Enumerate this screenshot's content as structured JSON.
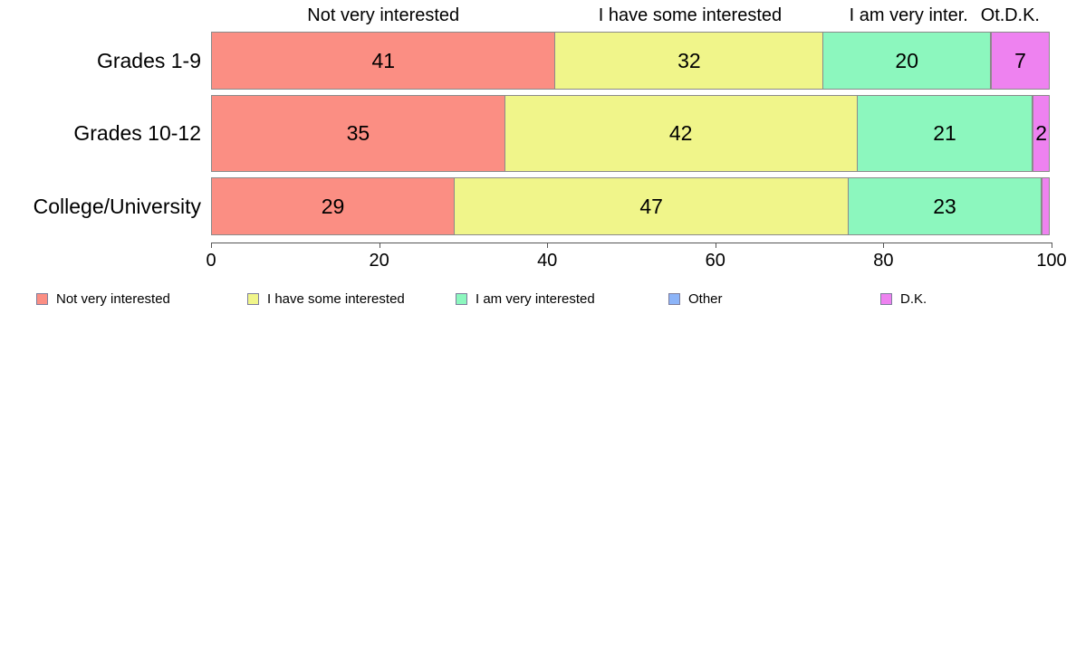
{
  "chart_data": {
    "type": "bar",
    "orientation": "horizontal",
    "stacked": true,
    "categories": [
      "Grades 1-9",
      "Grades 10-12",
      "College/University"
    ],
    "series": [
      {
        "name": "Not very interested",
        "color": "#FB8E83",
        "values": [
          41,
          35,
          29
        ]
      },
      {
        "name": "I have some interested",
        "color": "#F0F58A",
        "values": [
          32,
          42,
          47
        ]
      },
      {
        "name": "I am very interested",
        "color": "#8CF7BE",
        "values": [
          20,
          21,
          23
        ]
      },
      {
        "name": "Other",
        "color": "#8CB4F8",
        "values": [
          0,
          0,
          0
        ]
      },
      {
        "name": "D.K.",
        "color": "#EE82F0",
        "values": [
          7,
          2,
          1
        ]
      }
    ],
    "column_headers": [
      "Not very interested",
      "I have some interested",
      "I am very inter.",
      "Ot.",
      "D.K."
    ],
    "x_axis": {
      "min": 0,
      "max": 100,
      "ticks": [
        0,
        20,
        40,
        60,
        80,
        100
      ]
    },
    "legend": [
      {
        "label": "Not very interested",
        "color": "#FB8E83"
      },
      {
        "label": "I have some interested",
        "color": "#F0F58A"
      },
      {
        "label": "I am very interested",
        "color": "#8CF7BE"
      },
      {
        "label": "Other",
        "color": "#8CB4F8"
      },
      {
        "label": "D.K.",
        "color": "#EE82F0"
      }
    ],
    "legend_position": "bottom",
    "grid": false,
    "value_label_min": 2
  },
  "styles": {
    "segment_border": "#8a8a8a",
    "axis_color": "#555555",
    "background": "#ffffff",
    "text_color": "#000000"
  }
}
